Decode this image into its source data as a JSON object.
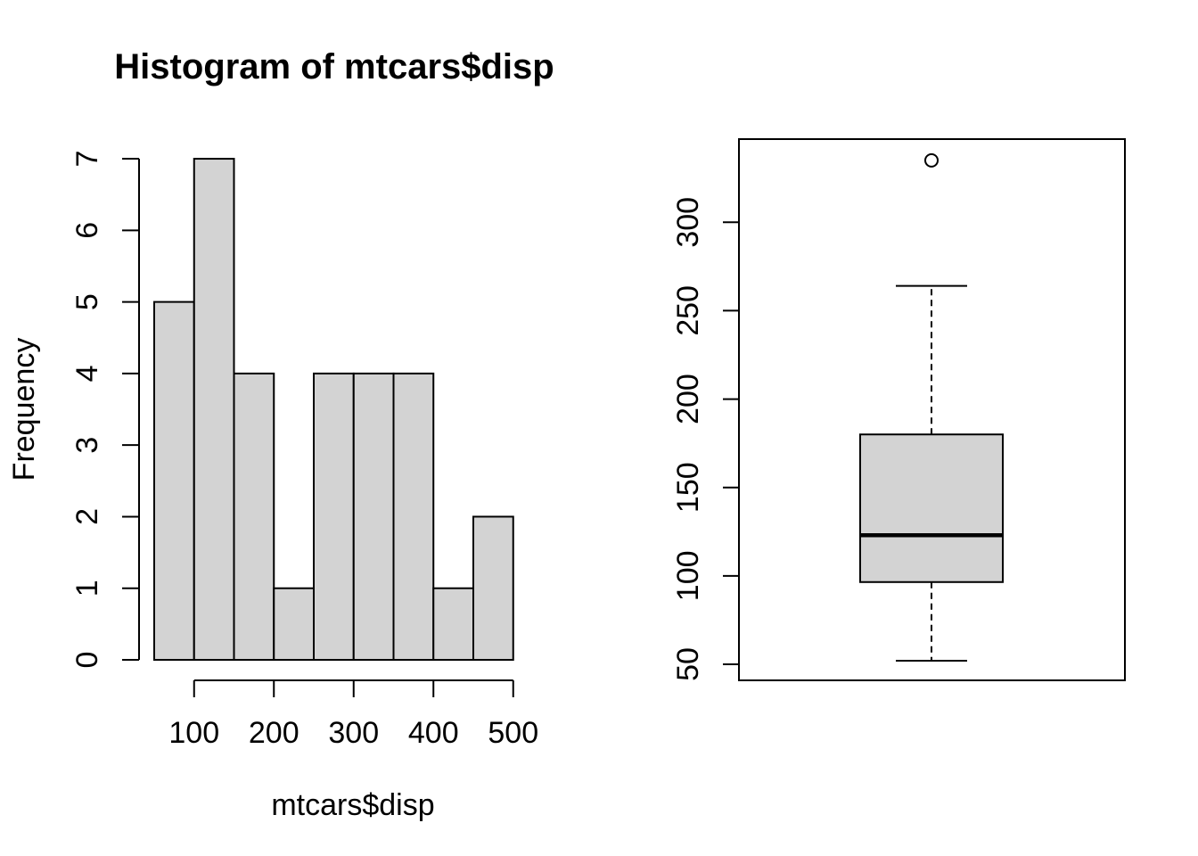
{
  "figure": {
    "background": "#ffffff",
    "foreground": "#000000"
  },
  "chart_data": [
    {
      "type": "bar",
      "subtype": "histogram",
      "title": "Histogram of mtcars$disp",
      "xlabel": "mtcars$disp",
      "ylabel": "Frequency",
      "bin_edges": [
        50,
        100,
        150,
        200,
        250,
        300,
        350,
        400,
        450,
        500
      ],
      "counts": [
        5,
        7,
        4,
        1,
        4,
        4,
        4,
        1,
        2
      ],
      "x_ticks": [
        100,
        200,
        300,
        400,
        500
      ],
      "y_ticks": [
        0,
        1,
        2,
        3,
        4,
        5,
        6,
        7
      ],
      "xlim": [
        50,
        500
      ],
      "ylim": [
        0,
        7
      ],
      "bar_fill": "#d3d3d3",
      "bar_stroke": "#000000",
      "grid": false,
      "legend": "none"
    },
    {
      "type": "boxplot",
      "title": "",
      "xlabel": "",
      "ylabel": "",
      "y_ticks": [
        50,
        100,
        150,
        200,
        250,
        300
      ],
      "stats": {
        "lower_whisker": 52,
        "q1": 96.5,
        "median": 123,
        "q3": 180,
        "upper_whisker": 264
      },
      "outliers": [
        335
      ],
      "ylim": [
        50,
        335
      ],
      "box_fill": "#d3d3d3",
      "box_stroke": "#000000",
      "whisker_style": "dashed",
      "grid": false,
      "legend": "none"
    }
  ]
}
